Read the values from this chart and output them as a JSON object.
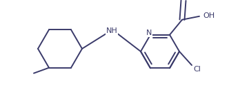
{
  "background_color": "#ffffff",
  "line_color": "#3a3a6a",
  "figsize": [
    3.32,
    1.37
  ],
  "dpi": 100,
  "lw": 1.4,
  "font_size": 7.5,
  "xlim": [
    0,
    332
  ],
  "ylim": [
    0,
    137
  ]
}
